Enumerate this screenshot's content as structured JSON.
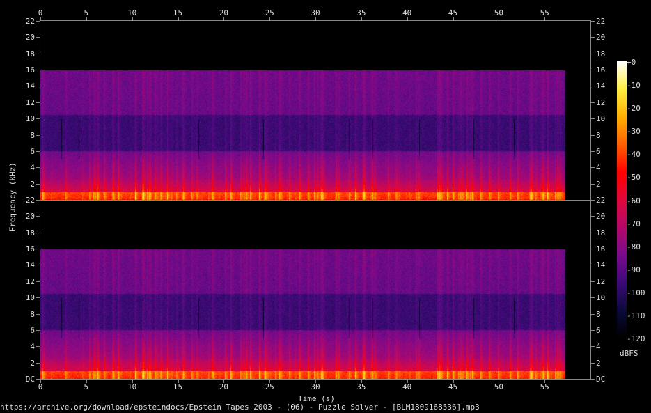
{
  "chart_data": {
    "type": "heatmap",
    "title": "",
    "xlabel": "Time (s)",
    "ylabel": "Frequency (kHz)",
    "x_ticks": [
      "0",
      "5",
      "10",
      "15",
      "20",
      "25",
      "30",
      "35",
      "40",
      "45",
      "50",
      "55"
    ],
    "xlim": [
      0,
      60
    ],
    "data_duration_s": 57.3,
    "channels": 2,
    "y_ticks_top": [
      "2",
      "4",
      "6",
      "8",
      "10",
      "12",
      "14",
      "16",
      "18",
      "20",
      "22"
    ],
    "y_ticks_bottom": [
      "DC",
      "2",
      "4",
      "6",
      "8",
      "10",
      "12",
      "14",
      "16",
      "18",
      "20",
      "22"
    ],
    "ylim_khz": [
      0,
      22
    ],
    "content_cutoff_khz": 16,
    "colorbar": {
      "label": "dBFS",
      "ticks": [
        "+0",
        "-10",
        "-20",
        "-30",
        "-40",
        "-50",
        "-60",
        "-70",
        "-80",
        "-90",
        "-100",
        "-110",
        "-120"
      ],
      "range": [
        -120,
        0
      ],
      "colors": [
        "#000000",
        "#0a0a3c",
        "#3c0a78",
        "#7a0a8c",
        "#b4086a",
        "#e0083c",
        "#ff0000",
        "#ff6000",
        "#ffb000",
        "#ffee40",
        "#ffffff"
      ]
    },
    "legend": "right"
  },
  "footer": "https://archive.org/download/epsteindocs/Epstein Tapes 2003 - (06) - Puzzle Solver - [BLM1809168536].mp3"
}
